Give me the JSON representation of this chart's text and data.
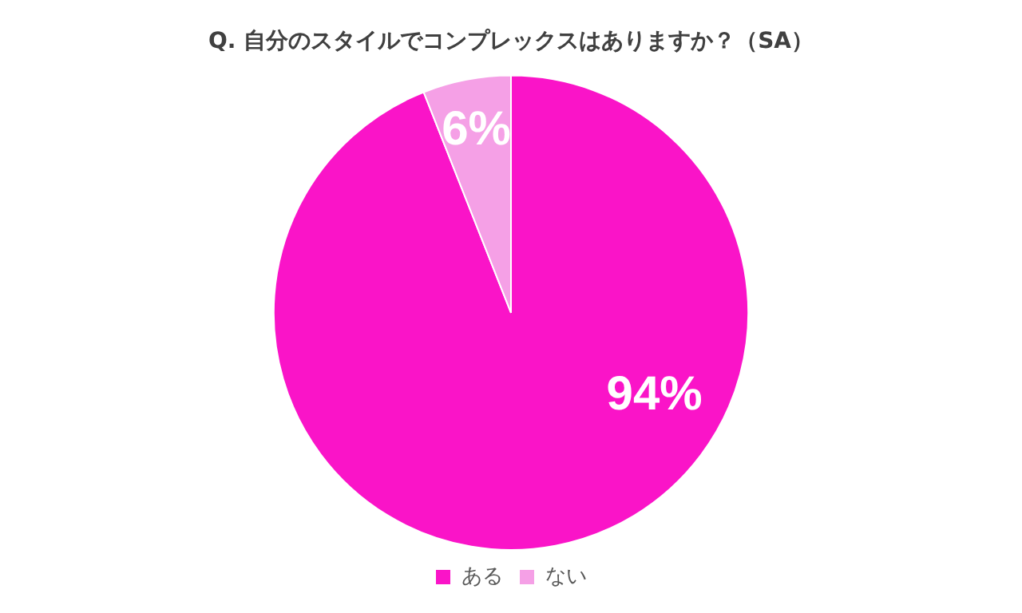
{
  "chart_data": {
    "type": "pie",
    "title": "Q. 自分のスタイルでコンプレックスはありますか？（SA）",
    "categories": [
      "ある",
      "ない"
    ],
    "values": [
      94,
      6
    ],
    "colors": [
      "#fa14c8",
      "#f5a0e6"
    ],
    "value_labels": [
      "94%",
      "6%"
    ],
    "legend": "bottom"
  }
}
